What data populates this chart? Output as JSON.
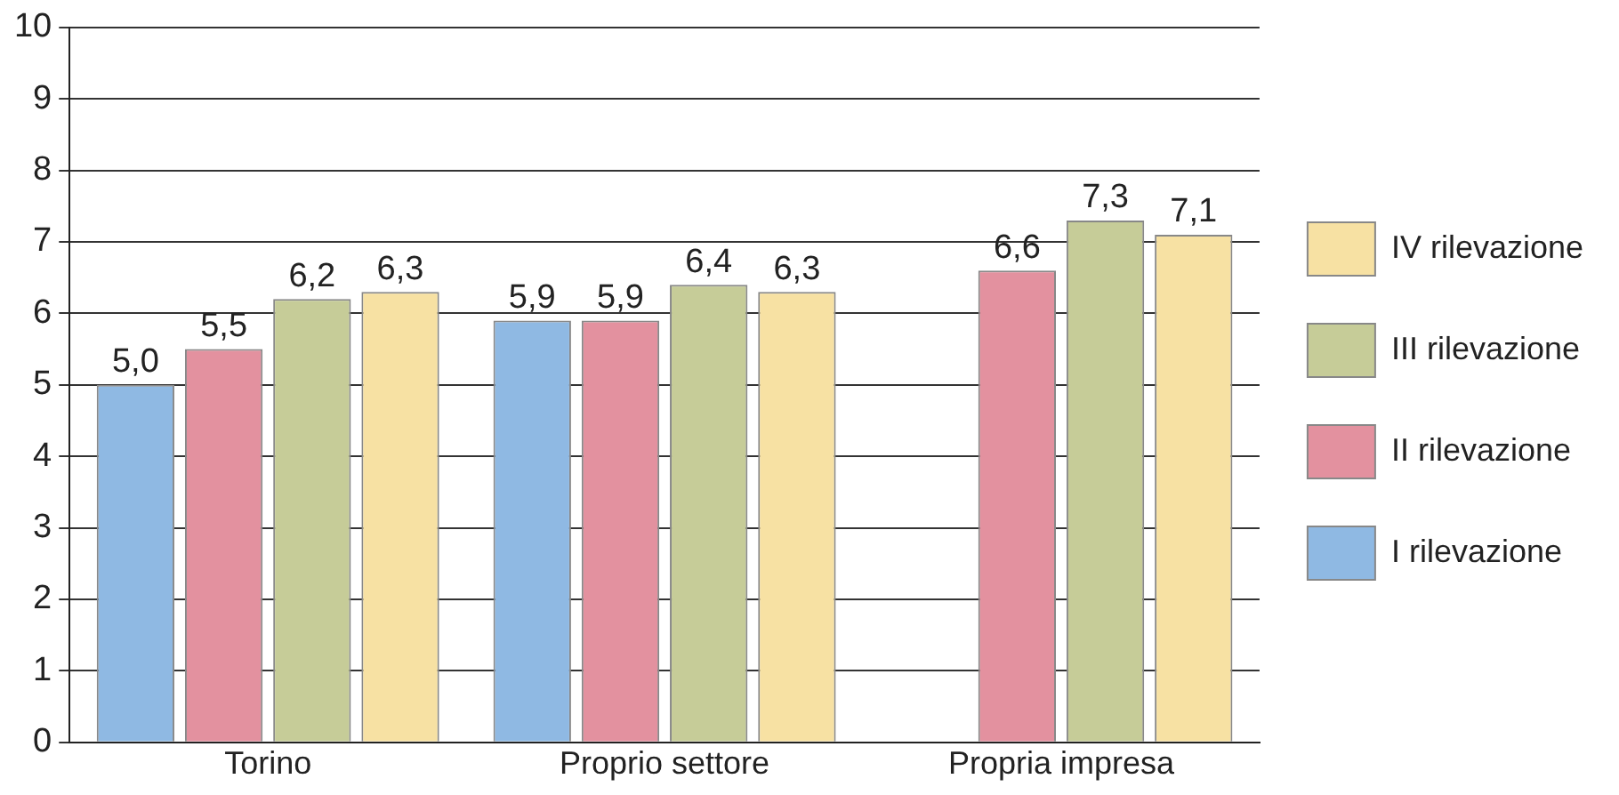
{
  "chart_data": {
    "type": "bar",
    "categories": [
      "Torino",
      "Proprio settore",
      "Propria impresa"
    ],
    "series": [
      {
        "name": "I rilevazione",
        "color": "#8fb9e3",
        "values": [
          5.0,
          5.9,
          null
        ],
        "value_labels": [
          "5,0",
          "5,9",
          null
        ]
      },
      {
        "name": "II rilevazione",
        "color": "#e3919f",
        "values": [
          5.5,
          5.9,
          6.6
        ],
        "value_labels": [
          "5,5",
          "5,9",
          "6,6"
        ]
      },
      {
        "name": "III rilevazione",
        "color": "#c6cc98",
        "values": [
          6.2,
          6.4,
          7.3
        ],
        "value_labels": [
          "6,2",
          "6,4",
          "7,3"
        ]
      },
      {
        "name": "IV rilevazione",
        "color": "#f7e1a3",
        "values": [
          6.3,
          6.3,
          7.1
        ],
        "value_labels": [
          "6,3",
          "6,3",
          "7,1"
        ]
      }
    ],
    "ylim": [
      0,
      10
    ],
    "yticks": [
      0,
      1,
      2,
      3,
      4,
      5,
      6,
      7,
      8,
      9,
      10
    ],
    "grid": "y",
    "legend": "right"
  }
}
